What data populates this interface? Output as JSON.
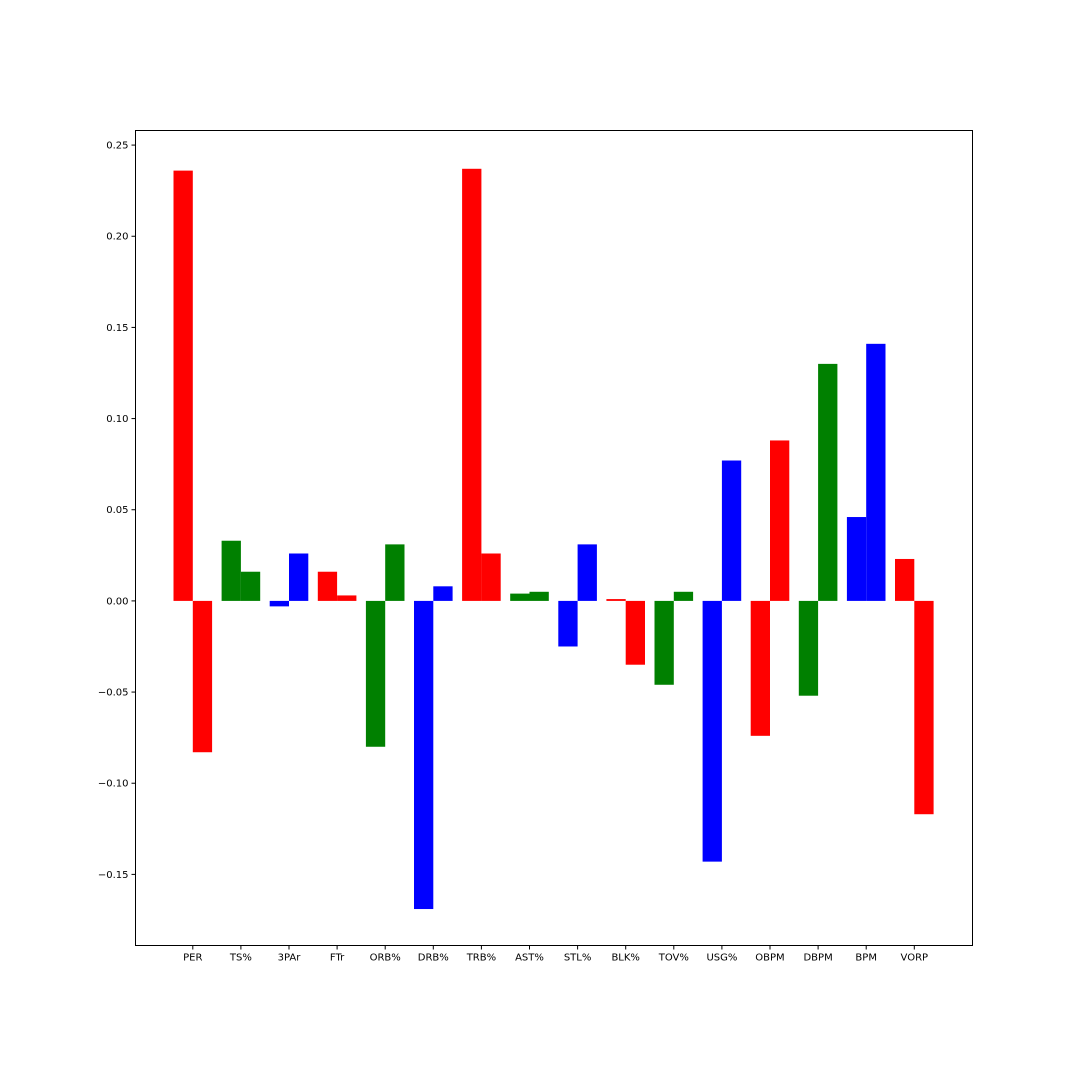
{
  "chart_data": {
    "type": "bar",
    "title": "",
    "xlabel": "",
    "ylabel": "",
    "categories": [
      "PER",
      "TS%",
      "3PAr",
      "FTr",
      "ORB%",
      "DRB%",
      "TRB%",
      "AST%",
      "STL%",
      "BLK%",
      "TOV%",
      "USG%",
      "OBPM",
      "DBPM",
      "BPM",
      "VORP"
    ],
    "ylim": [
      -0.189,
      0.258
    ],
    "yticks": [
      -0.15,
      -0.1,
      -0.05,
      0.0,
      0.05,
      0.1,
      0.15,
      0.2,
      0.25
    ],
    "ytick_labels": [
      "−0.15",
      "−0.10",
      "−0.05",
      "0.00",
      "0.05",
      "0.10",
      "0.15",
      "0.20",
      "0.25"
    ],
    "grid": false,
    "bars": [
      {
        "category": "PER",
        "left": 0.236,
        "right": -0.083,
        "color": "#ff0000"
      },
      {
        "category": "TS%",
        "left": 0.033,
        "right": 0.016,
        "color": "#008000"
      },
      {
        "category": "3PAr",
        "left": -0.003,
        "right": 0.026,
        "color": "#0000ff"
      },
      {
        "category": "FTr",
        "left": 0.016,
        "right": 0.003,
        "color": "#ff0000"
      },
      {
        "category": "ORB%",
        "left": -0.08,
        "right": 0.031,
        "color": "#008000"
      },
      {
        "category": "DRB%",
        "left": -0.169,
        "right": 0.008,
        "color": "#0000ff"
      },
      {
        "category": "TRB%",
        "left": 0.237,
        "right": 0.026,
        "color": "#ff0000"
      },
      {
        "category": "AST%",
        "left": 0.004,
        "right": 0.005,
        "color": "#008000"
      },
      {
        "category": "STL%",
        "left": -0.025,
        "right": 0.031,
        "color": "#0000ff"
      },
      {
        "category": "BLK%",
        "left": 0.001,
        "right": -0.035,
        "color": "#ff0000"
      },
      {
        "category": "TOV%",
        "left": -0.046,
        "right": 0.005,
        "color": "#008000"
      },
      {
        "category": "USG%",
        "left": -0.143,
        "right": 0.077,
        "color": "#0000ff"
      },
      {
        "category": "OBPM",
        "left": -0.074,
        "right": 0.088,
        "color": "#ff0000"
      },
      {
        "category": "DBPM",
        "left": -0.052,
        "right": 0.13,
        "color": "#008000"
      },
      {
        "category": "BPM",
        "left": 0.046,
        "right": 0.141,
        "color": "#0000ff"
      },
      {
        "category": "VORP",
        "left": 0.023,
        "right": -0.117,
        "color": "#ff0000"
      }
    ]
  }
}
